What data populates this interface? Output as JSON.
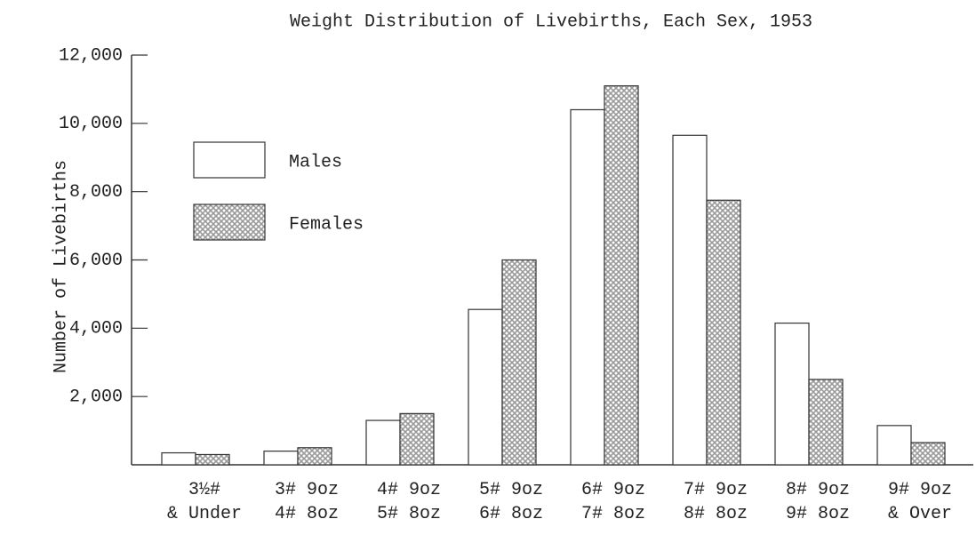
{
  "chart_data": {
    "type": "bar",
    "title": "Weight Distribution of Livebirths, Each Sex, 1953",
    "y_label": "Number of Livebirths",
    "categories": [
      "3½#\n& Under",
      "3# 9oz\n4# 8oz",
      "4# 9oz\n5# 8oz",
      "5# 9oz\n6# 8oz",
      "6# 9oz\n7# 8oz",
      "7# 9oz\n8# 8oz",
      "8# 9oz\n9# 8oz",
      "9# 9oz\n& Over"
    ],
    "series": [
      {
        "name": "Males",
        "color": "#ffffff",
        "values": [
          350,
          400,
          1300,
          4550,
          10400,
          9650,
          4150,
          1150
        ]
      },
      {
        "name": "Females",
        "color": "#9a9a9a",
        "values": [
          300,
          500,
          1500,
          6000,
          11100,
          7750,
          2500,
          650
        ]
      }
    ],
    "ylim": [
      0,
      12000
    ],
    "yticks": [
      {
        "value": 2000,
        "label": "2,000"
      },
      {
        "value": 4000,
        "label": "4,000"
      },
      {
        "value": 6000,
        "label": "6,000"
      },
      {
        "value": 8000,
        "label": "8,000"
      },
      {
        "value": 10000,
        "label": "10,000"
      },
      {
        "value": 12000,
        "label": "12,000"
      }
    ],
    "legend": "upper left"
  }
}
